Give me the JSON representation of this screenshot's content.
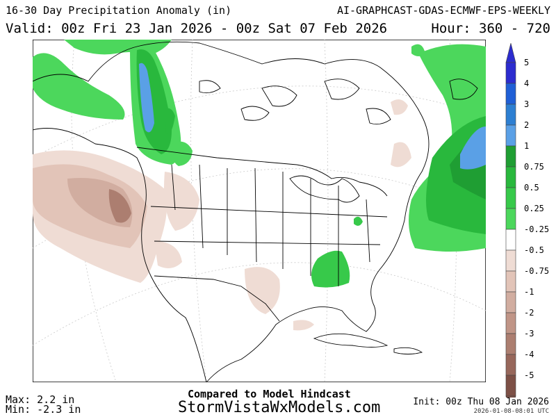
{
  "header": {
    "title": "16-30 Day Precipitation Anomaly (in)",
    "model": "AI-GRAPHCAST-GDAS-ECMWF-EPS-WEEKLY",
    "valid": "Valid: 00z Fri 23 Jan 2026 - 00z Sat 07 Feb 2026",
    "hours": "Hour: 360 - 720"
  },
  "legend": {
    "labels": [
      "5",
      "4",
      "3",
      "2",
      "1",
      "0.75",
      "0.5",
      "0.25",
      "-0.25",
      "-0.5",
      "-0.75",
      "-1",
      "-2",
      "-3",
      "-4",
      "-5"
    ],
    "colors": [
      "#2c2ccf",
      "#1f5fd6",
      "#2d7fd2",
      "#5aa0e6",
      "#1f9e33",
      "#29b83d",
      "#37c94a",
      "#4cd75c",
      "#ffffff",
      "#efdcd4",
      "#e2c4b8",
      "#d1ada0",
      "#c09587",
      "#ac7e70",
      "#97675b",
      "#7d5046"
    ]
  },
  "footer": {
    "max": "Max: 2.2 in",
    "min": "Min: -2.3 in",
    "compared": "Compared to Model Hindcast",
    "site": "StormVistaWxModels.com",
    "init": "Init: 00z Thu 08 Jan 2026",
    "stamp": "2026-01-08-08:01 UTC"
  }
}
